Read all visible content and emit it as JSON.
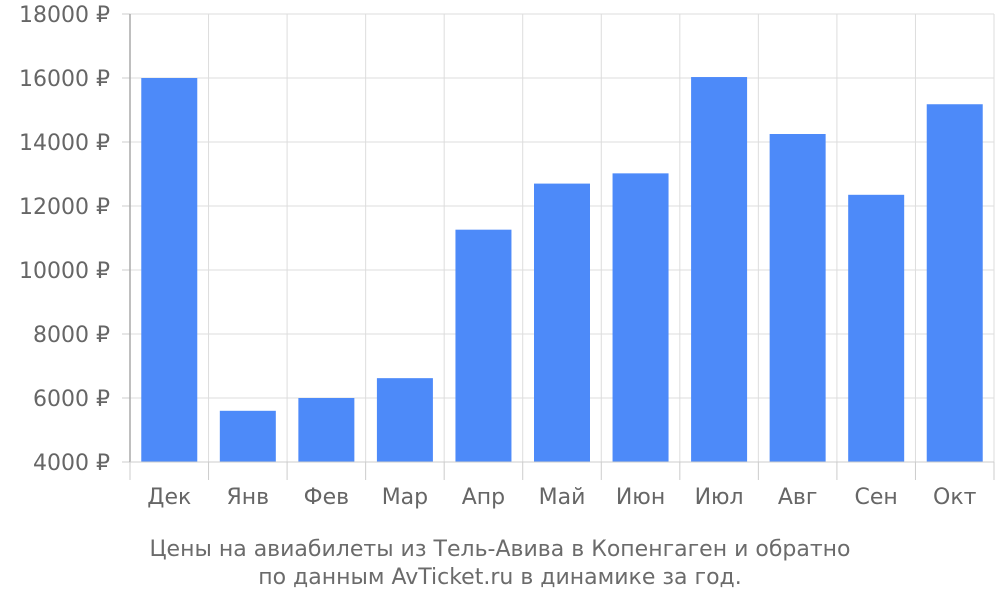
{
  "chart_data": {
    "type": "bar",
    "categories": [
      "Дек",
      "Янв",
      "Фев",
      "Мар",
      "Апр",
      "Май",
      "Июн",
      "Июл",
      "Авг",
      "Сен",
      "Окт"
    ],
    "values": [
      16000,
      5600,
      6000,
      6620,
      11260,
      12700,
      13020,
      16030,
      14250,
      12350,
      15180
    ],
    "ylim": [
      4000,
      18000
    ],
    "yticks": [
      4000,
      6000,
      8000,
      10000,
      12000,
      14000,
      16000,
      18000
    ],
    "ytick_suffix": " ₽",
    "grid": true,
    "bar_color": "#4d8af9",
    "caption_line1": "Цены на авиабилеты из Тель-Авива в Копенгаген и обратно",
    "caption_line2": "по данным AvTicket.ru в динамике за год."
  }
}
